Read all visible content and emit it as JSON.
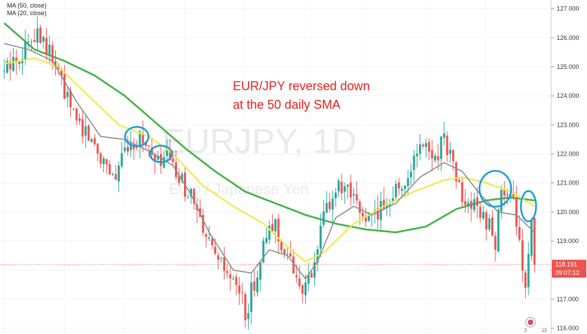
{
  "chart_data": {
    "type": "candlestick",
    "symbol": "EURJPY",
    "timeframe": "1D",
    "description": "Euro / Japanese Yen",
    "legend": [
      {
        "label": "MA (50, close)",
        "color": "#f2e84a"
      },
      {
        "label": "MA (20, close)",
        "color": "#8c8c8c"
      }
    ],
    "series_colors": {
      "up": "#26a69a",
      "down": "#ef5350",
      "ma50": "#f2e84a",
      "ma20": "#8c8c8c",
      "ma100": "#43b244",
      "circle": "#1b9be0"
    },
    "ylim": [
      115.8,
      127.3
    ],
    "y_ticks": [
      "116.000",
      "117.000",
      "118.000",
      "119.000",
      "120.000",
      "121.000",
      "122.000",
      "123.000",
      "124.000",
      "125.000",
      "126.000",
      "127.000"
    ],
    "current_price": {
      "value": "118.191",
      "countdown": "09:07:12",
      "level": 118.191
    },
    "annotation_lines": [
      "EUR/JPY reversed down",
      "at the 50 daily SMA"
    ],
    "key_points": [
      {
        "i": 0,
        "p": 124.8
      },
      {
        "i": 4,
        "p": 125.3
      },
      {
        "i": 8,
        "p": 125.8
      },
      {
        "i": 11,
        "p": 126.4
      },
      {
        "i": 14,
        "p": 125.7
      },
      {
        "i": 18,
        "p": 124.8
      },
      {
        "i": 22,
        "p": 123.5
      },
      {
        "i": 27,
        "p": 122.8
      },
      {
        "i": 33,
        "p": 121.8
      },
      {
        "i": 37,
        "p": 121.2
      },
      {
        "i": 41,
        "p": 122.4
      },
      {
        "i": 46,
        "p": 122.6
      },
      {
        "i": 50,
        "p": 121.6
      },
      {
        "i": 54,
        "p": 121.9
      },
      {
        "i": 58,
        "p": 121.1
      },
      {
        "i": 62,
        "p": 120.6
      },
      {
        "i": 66,
        "p": 119.2
      },
      {
        "i": 70,
        "p": 118.4
      },
      {
        "i": 74,
        "p": 117.8
      },
      {
        "i": 78,
        "p": 117.3
      },
      {
        "i": 80,
        "p": 116.5
      },
      {
        "i": 83,
        "p": 117.6
      },
      {
        "i": 87,
        "p": 119.1
      },
      {
        "i": 90,
        "p": 119.6
      },
      {
        "i": 93,
        "p": 118.6
      },
      {
        "i": 97,
        "p": 117.8
      },
      {
        "i": 100,
        "p": 117.3
      },
      {
        "i": 103,
        "p": 118.1
      },
      {
        "i": 106,
        "p": 119.9
      },
      {
        "i": 110,
        "p": 120.8
      },
      {
        "i": 114,
        "p": 120.6
      },
      {
        "i": 118,
        "p": 120.0
      },
      {
        "i": 122,
        "p": 119.7
      },
      {
        "i": 126,
        "p": 120.3
      },
      {
        "i": 129,
        "p": 120.7
      },
      {
        "i": 133,
        "p": 121.0
      },
      {
        "i": 136,
        "p": 121.8
      },
      {
        "i": 139,
        "p": 122.3
      },
      {
        "i": 143,
        "p": 121.9
      },
      {
        "i": 146,
        "p": 122.6
      },
      {
        "i": 149,
        "p": 121.6
      },
      {
        "i": 152,
        "p": 120.4
      },
      {
        "i": 156,
        "p": 120.1
      },
      {
        "i": 160,
        "p": 119.7
      },
      {
        "i": 163,
        "p": 119.0
      },
      {
        "i": 165,
        "p": 120.7
      },
      {
        "i": 169,
        "p": 120.2
      },
      {
        "i": 171,
        "p": 119.3
      },
      {
        "i": 173,
        "p": 117.1
      },
      {
        "i": 175,
        "p": 119.5
      },
      {
        "i": 176,
        "p": 118.2
      }
    ],
    "ma50": [
      {
        "i": 0,
        "p": 125.1
      },
      {
        "i": 10,
        "p": 125.3
      },
      {
        "i": 18,
        "p": 125.0
      },
      {
        "i": 28,
        "p": 124.0
      },
      {
        "i": 38,
        "p": 123.0
      },
      {
        "i": 48,
        "p": 122.6
      },
      {
        "i": 56,
        "p": 122.0
      },
      {
        "i": 66,
        "p": 120.9
      },
      {
        "i": 76,
        "p": 120.2
      },
      {
        "i": 86,
        "p": 119.6
      },
      {
        "i": 94,
        "p": 118.8
      },
      {
        "i": 100,
        "p": 118.3
      },
      {
        "i": 106,
        "p": 118.6
      },
      {
        "i": 116,
        "p": 119.6
      },
      {
        "i": 126,
        "p": 120.2
      },
      {
        "i": 136,
        "p": 120.7
      },
      {
        "i": 146,
        "p": 121.1
      },
      {
        "i": 152,
        "p": 121.2
      },
      {
        "i": 160,
        "p": 121.0
      },
      {
        "i": 168,
        "p": 120.7
      },
      {
        "i": 176,
        "p": 120.2
      }
    ],
    "ma20": [
      {
        "i": 0,
        "p": 125.8
      },
      {
        "i": 8,
        "p": 125.6
      },
      {
        "i": 16,
        "p": 125.2
      },
      {
        "i": 24,
        "p": 123.8
      },
      {
        "i": 32,
        "p": 122.6
      },
      {
        "i": 40,
        "p": 122.5
      },
      {
        "i": 48,
        "p": 122.1
      },
      {
        "i": 56,
        "p": 121.6
      },
      {
        "i": 62,
        "p": 120.6
      },
      {
        "i": 68,
        "p": 119.3
      },
      {
        "i": 76,
        "p": 118.0
      },
      {
        "i": 82,
        "p": 117.9
      },
      {
        "i": 88,
        "p": 118.7
      },
      {
        "i": 94,
        "p": 118.5
      },
      {
        "i": 100,
        "p": 117.7
      },
      {
        "i": 104,
        "p": 118.3
      },
      {
        "i": 110,
        "p": 119.8
      },
      {
        "i": 116,
        "p": 120.2
      },
      {
        "i": 122,
        "p": 119.9
      },
      {
        "i": 130,
        "p": 120.3
      },
      {
        "i": 138,
        "p": 121.2
      },
      {
        "i": 146,
        "p": 121.7
      },
      {
        "i": 152,
        "p": 121.4
      },
      {
        "i": 158,
        "p": 120.6
      },
      {
        "i": 164,
        "p": 120.0
      },
      {
        "i": 170,
        "p": 119.9
      },
      {
        "i": 176,
        "p": 119.3
      }
    ],
    "ma100": [
      {
        "i": 0,
        "p": 126.5
      },
      {
        "i": 10,
        "p": 125.6
      },
      {
        "i": 20,
        "p": 125.2
      },
      {
        "i": 30,
        "p": 124.7
      },
      {
        "i": 40,
        "p": 124.0
      },
      {
        "i": 50,
        "p": 123.1
      },
      {
        "i": 60,
        "p": 122.2
      },
      {
        "i": 70,
        "p": 121.4
      },
      {
        "i": 80,
        "p": 120.7
      },
      {
        "i": 90,
        "p": 120.3
      },
      {
        "i": 100,
        "p": 119.9
      },
      {
        "i": 110,
        "p": 119.6
      },
      {
        "i": 120,
        "p": 119.4
      },
      {
        "i": 130,
        "p": 119.3
      },
      {
        "i": 140,
        "p": 119.5
      },
      {
        "i": 150,
        "p": 120.1
      },
      {
        "i": 160,
        "p": 120.4
      },
      {
        "i": 168,
        "p": 120.5
      },
      {
        "i": 176,
        "p": 120.4
      }
    ],
    "candle_count": 177,
    "circles": [
      {
        "i": 44,
        "p": 122.6
      },
      {
        "i": 52,
        "p": 122.0
      },
      {
        "i": 163,
        "p": 120.8
      },
      {
        "i": 174,
        "p": 120.2
      }
    ]
  },
  "watermark": {
    "symbol": "EURJPY, 1D",
    "name": "Euro / Japanese Yen"
  }
}
